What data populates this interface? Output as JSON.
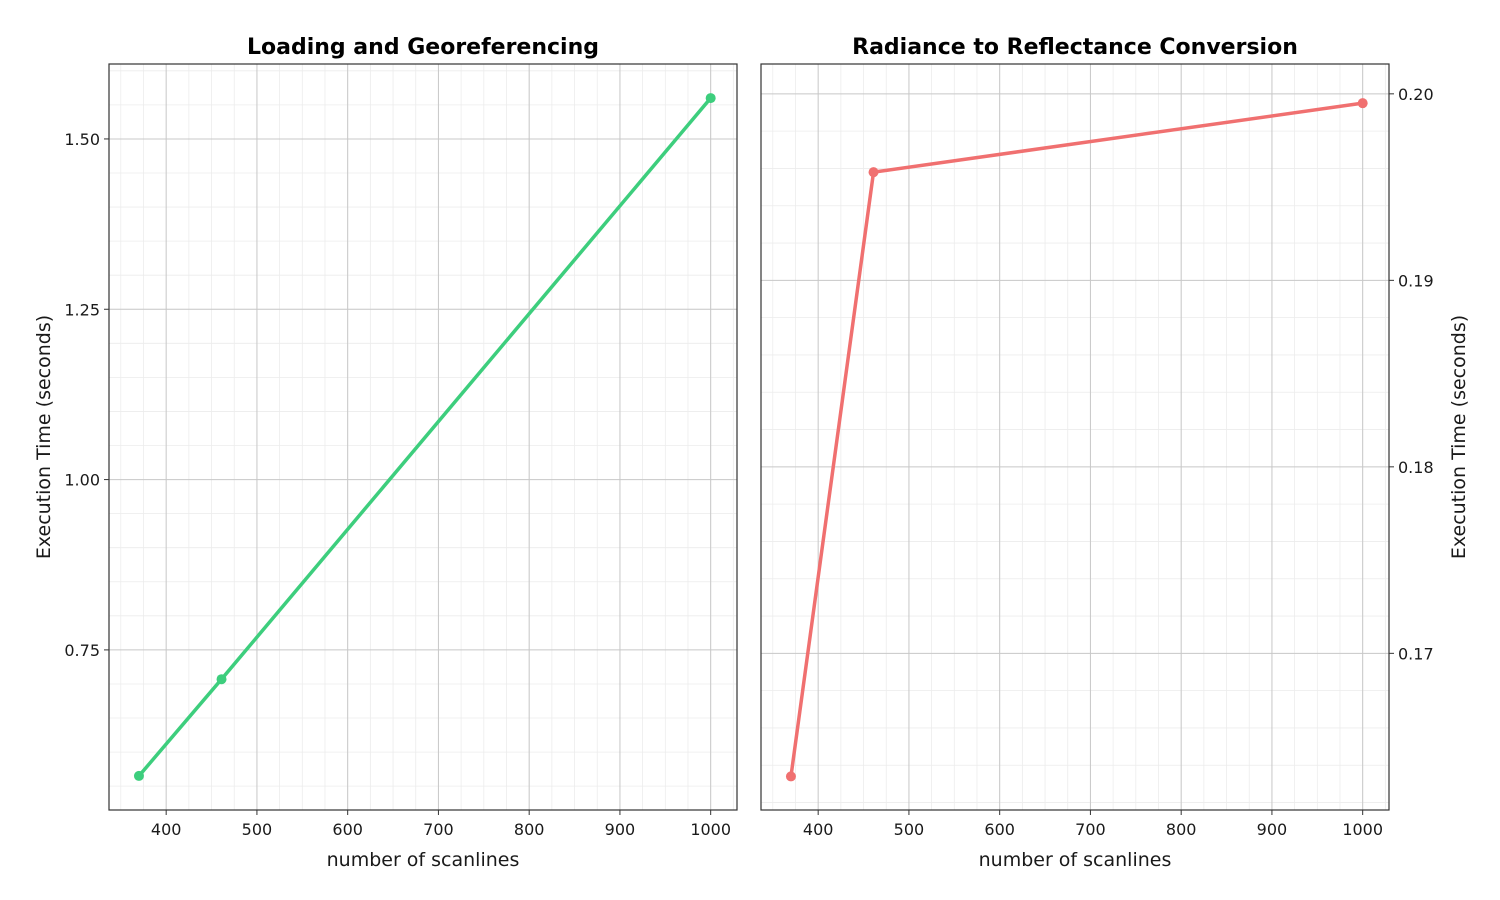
{
  "chart_data": [
    {
      "type": "line",
      "title": "Loading and Georeferencing",
      "xlabel": "number of scanlines",
      "ylabel": "Execution Time (seconds)",
      "y_axis_side": "left",
      "x": [
        370,
        461,
        1000
      ],
      "values": [
        0.565,
        0.707,
        1.56
      ],
      "color": "#3dce7d",
      "xlim": [
        337,
        1029
      ],
      "ylim": [
        0.515,
        1.61
      ],
      "x_ticks": [
        400,
        500,
        600,
        700,
        800,
        900,
        1000
      ],
      "x_tick_labels": [
        "400",
        "500",
        "600",
        "700",
        "800",
        "900",
        "1000"
      ],
      "y_ticks": [
        0.75,
        1.0,
        1.25,
        1.5
      ],
      "y_tick_labels": [
        "0.75",
        "1.00",
        "1.25",
        "1.50"
      ],
      "grid": true
    },
    {
      "type": "line",
      "title": "Radiance to Reflectance Conversion",
      "xlabel": "number of scanlines",
      "ylabel": "Execution Time (seconds)",
      "y_axis_side": "right",
      "x": [
        370,
        461,
        1000
      ],
      "values": [
        0.1634,
        0.1958,
        0.1995
      ],
      "color": "#f07070",
      "xlim": [
        337,
        1029
      ],
      "ylim": [
        0.1616,
        0.2016
      ],
      "x_ticks": [
        400,
        500,
        600,
        700,
        800,
        900,
        1000
      ],
      "x_tick_labels": [
        "400",
        "500",
        "600",
        "700",
        "800",
        "900",
        "1000"
      ],
      "y_ticks": [
        0.17,
        0.18,
        0.19,
        0.2
      ],
      "y_tick_labels": [
        "0.17",
        "0.18",
        "0.19",
        "0.20"
      ],
      "grid": true
    }
  ]
}
